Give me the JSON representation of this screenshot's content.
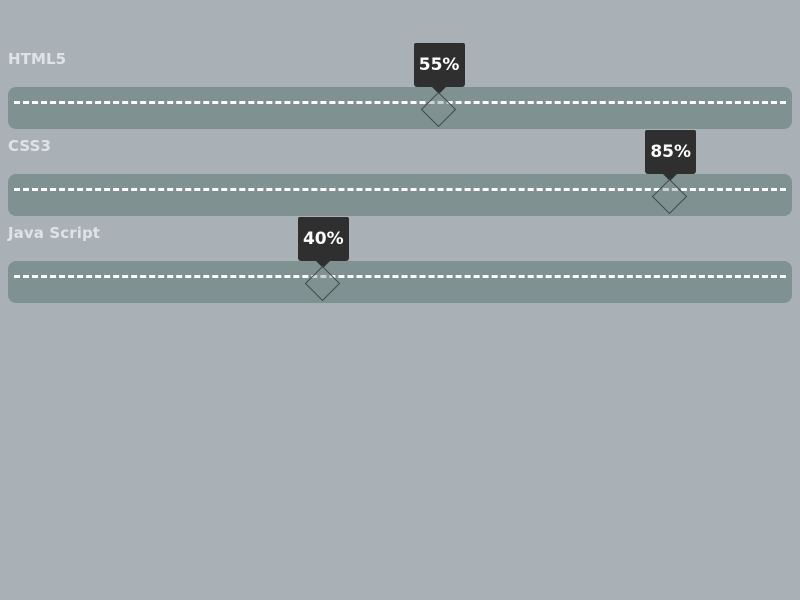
{
  "skills": [
    {
      "label": "HTML5",
      "value_text": "55%",
      "value": 55
    },
    {
      "label": "CSS3",
      "value_text": "85%",
      "value": 85
    },
    {
      "label": "Java Script",
      "value_text": "40%",
      "value": 40
    }
  ],
  "colors": {
    "background": "#a9b1b7",
    "track": "#7f9191",
    "tooltip": "#2f2f2f",
    "label": "#dfe3e5",
    "dash": "#ffffff"
  }
}
